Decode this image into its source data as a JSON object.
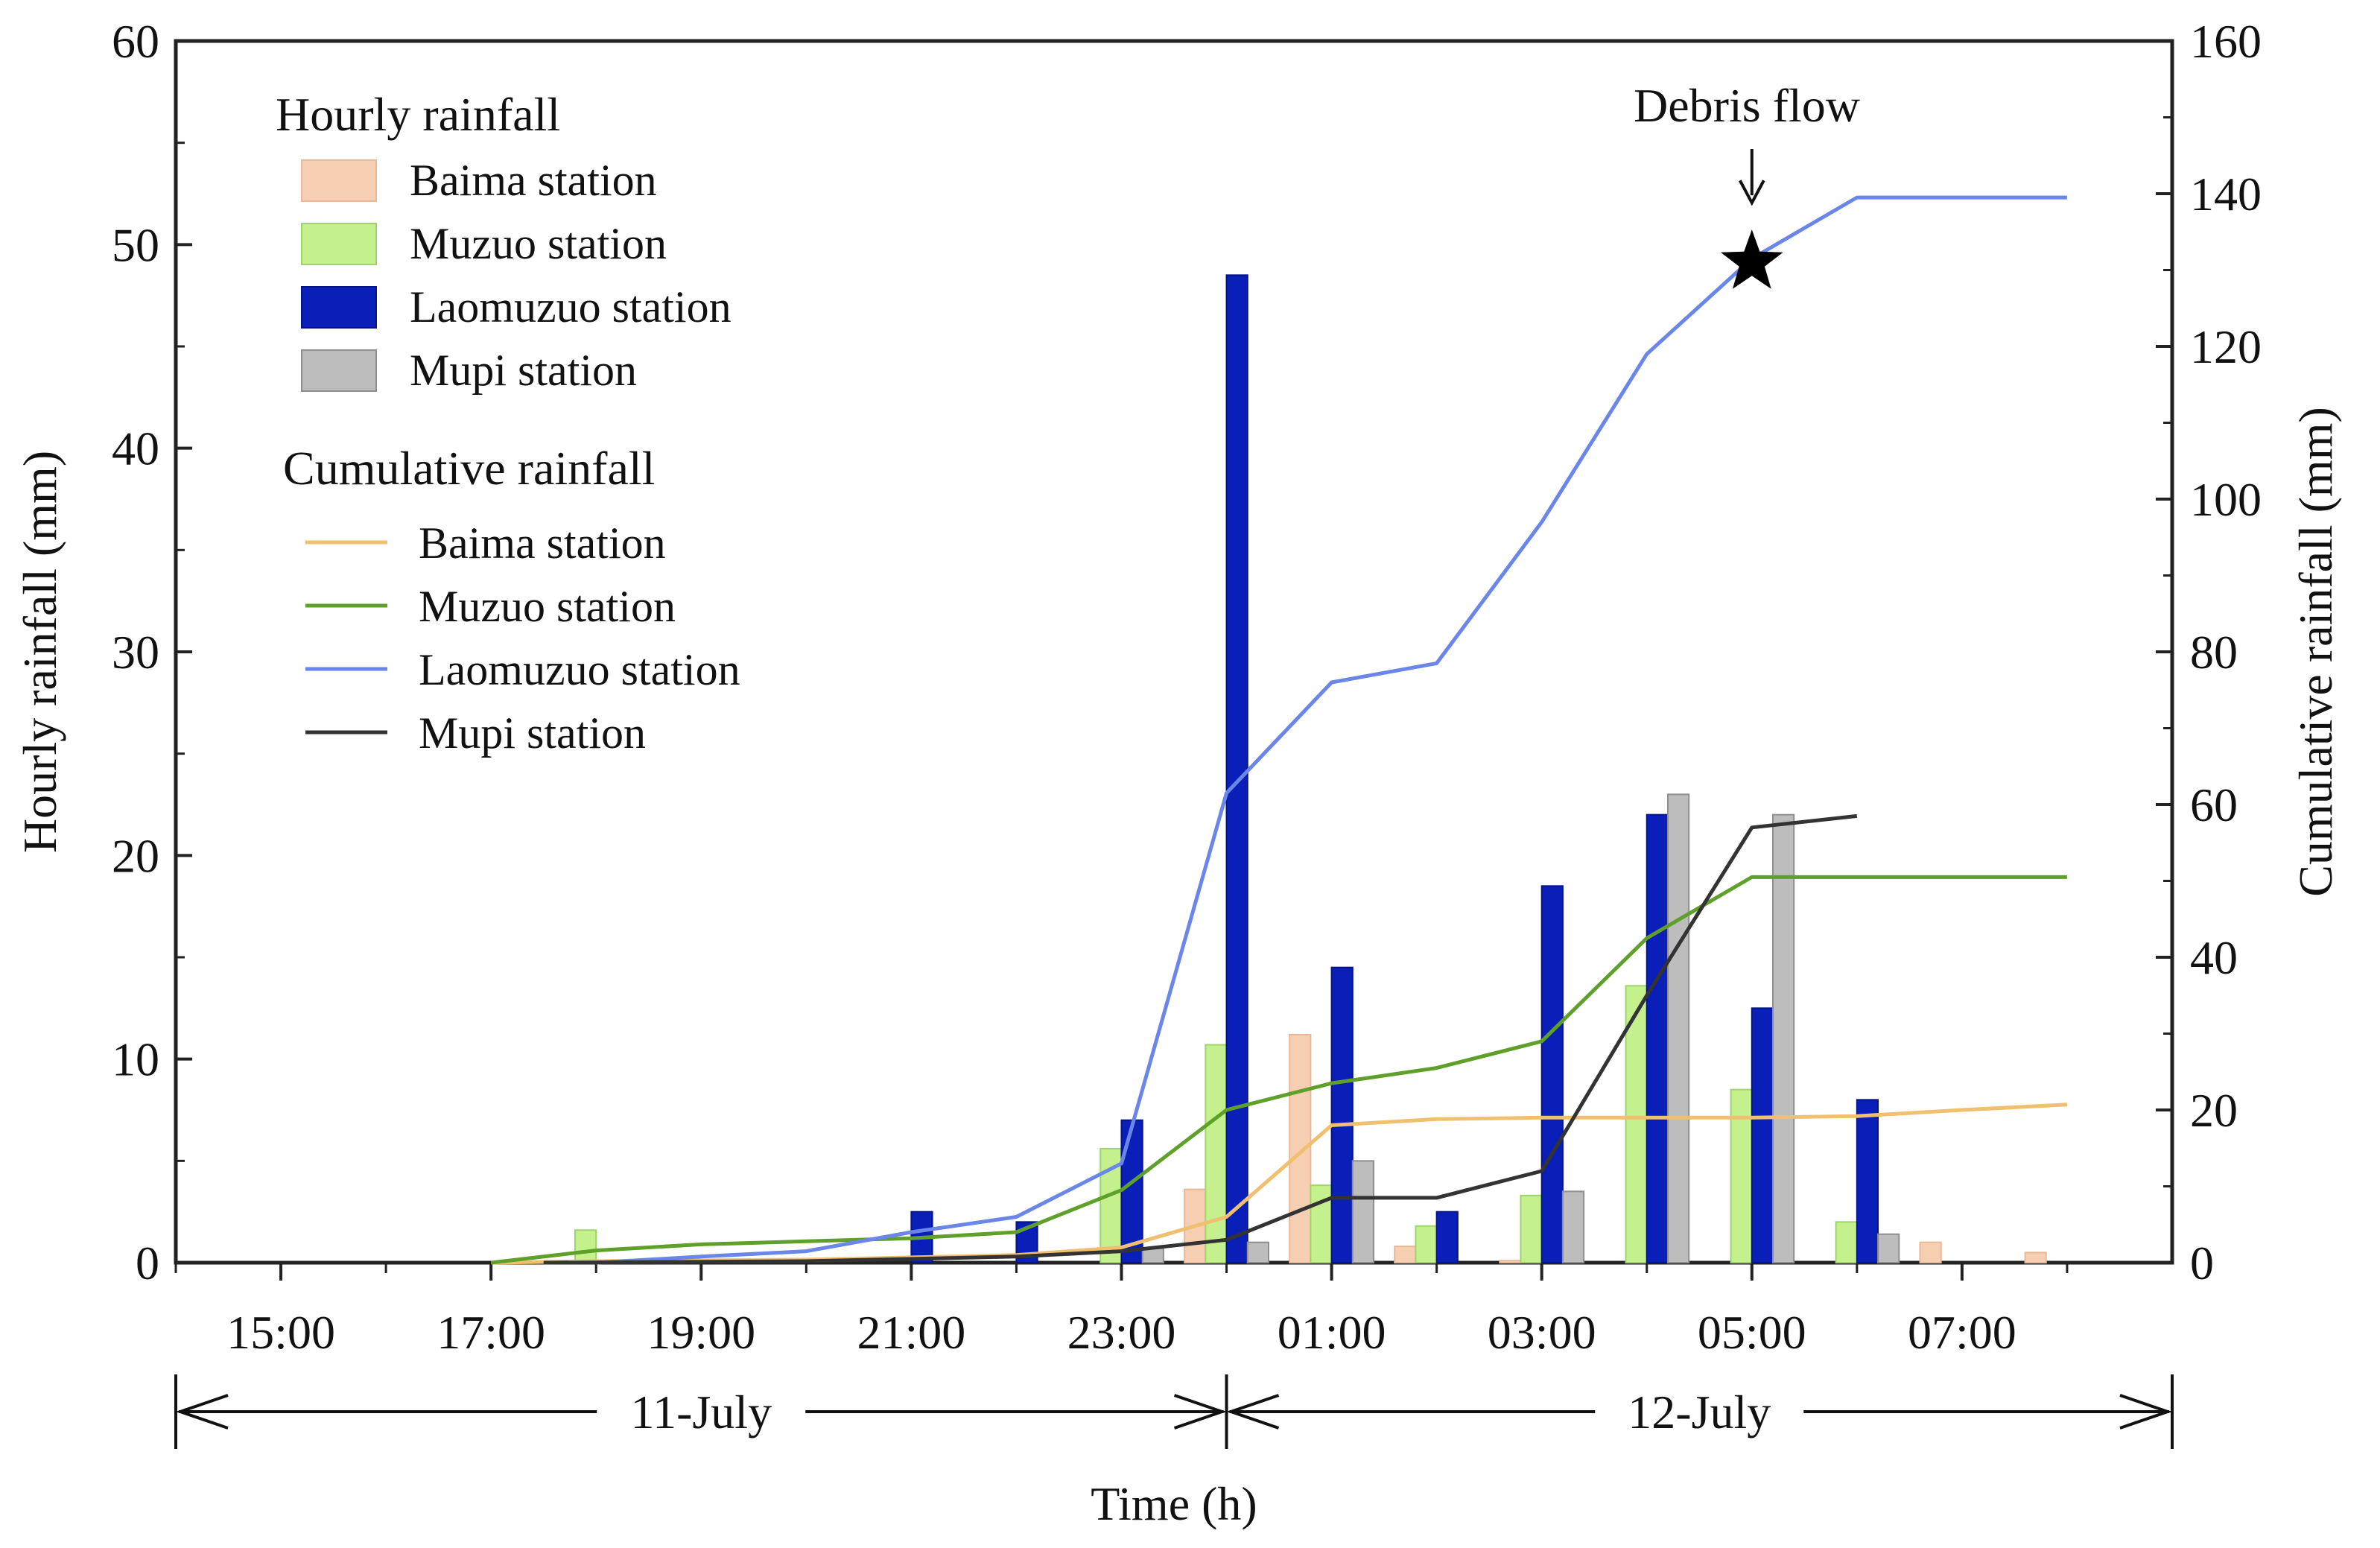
{
  "chart_data": {
    "type": "bar+line",
    "xlabel": "Time (h)",
    "ylabel_left": "Hourly rainfall (mm)",
    "ylabel_right": "Cumulative rainfall (mm)",
    "ylim_left": [
      0,
      60
    ],
    "ylim_right": [
      0,
      160
    ],
    "yticks_left": [
      0,
      10,
      20,
      30,
      40,
      50,
      60
    ],
    "yticks_right": [
      0,
      20,
      40,
      60,
      80,
      100,
      120,
      140,
      160
    ],
    "xlim_hours": [
      14,
      33
    ],
    "xticks": [
      {
        "t": 15,
        "label": "15:00"
      },
      {
        "t": 17,
        "label": "17:00"
      },
      {
        "t": 19,
        "label": "19:00"
      },
      {
        "t": 21,
        "label": "21:00"
      },
      {
        "t": 23,
        "label": "23:00"
      },
      {
        "t": 25,
        "label": "01:00"
      },
      {
        "t": 27,
        "label": "03:00"
      },
      {
        "t": 29,
        "label": "05:00"
      },
      {
        "t": 31,
        "label": "07:00"
      }
    ],
    "day_labels": [
      {
        "label": "11-July",
        "from": 14,
        "to": 24
      },
      {
        "label": "12-July",
        "from": 24,
        "to": 33
      }
    ],
    "legend_hourly_title": "Hourly rainfall",
    "legend_cumulative_title": "Cumulative rainfall",
    "annotation": {
      "label": "Debris flow",
      "t": 29,
      "cumulative_value": 131
    },
    "hourly_series": [
      {
        "name": "Baima station",
        "color": "#f6cfb2",
        "stroke": "#e8b898",
        "data": [
          [
            23.7,
            3.6
          ],
          [
            24.7,
            11.2
          ],
          [
            25.7,
            0.8
          ],
          [
            26.7,
            0.1
          ],
          [
            30.7,
            1.0
          ],
          [
            31.7,
            0.5
          ]
        ]
      },
      {
        "name": "Muzuo station",
        "color": "#c4f08e",
        "stroke": "#9fd46a",
        "data": [
          [
            17.9,
            1.6
          ],
          [
            22.9,
            5.6
          ],
          [
            23.9,
            10.7
          ],
          [
            24.9,
            3.8
          ],
          [
            25.9,
            1.8
          ],
          [
            26.9,
            3.3
          ],
          [
            27.9,
            13.6
          ],
          [
            28.9,
            8.5
          ],
          [
            29.9,
            2.0
          ]
        ]
      },
      {
        "name": "Laomuzuo station",
        "color": "#0a1fb8",
        "stroke": "#06148a",
        "data": [
          [
            21.1,
            2.5
          ],
          [
            22.1,
            2.0
          ],
          [
            23.1,
            7.0
          ],
          [
            24.1,
            48.5
          ],
          [
            25.1,
            14.5
          ],
          [
            26.1,
            2.5
          ],
          [
            27.1,
            18.5
          ],
          [
            28.1,
            22.0
          ],
          [
            29.1,
            12.5
          ],
          [
            30.1,
            8.0
          ]
        ]
      },
      {
        "name": "Mupi station",
        "color": "#bdbdbd",
        "stroke": "#8e8e8e",
        "data": [
          [
            23.3,
            0.7
          ],
          [
            24.3,
            1.0
          ],
          [
            25.3,
            5.0
          ],
          [
            27.3,
            3.5
          ],
          [
            28.3,
            23.0
          ],
          [
            29.3,
            22.0
          ],
          [
            30.3,
            1.4
          ]
        ]
      }
    ],
    "cumulative_series": [
      {
        "name": "Baima station",
        "color": "#f0c070",
        "data": [
          [
            17.0,
            0
          ],
          [
            18.0,
            0.2
          ],
          [
            20.0,
            0.4
          ],
          [
            22.0,
            1.0
          ],
          [
            23.0,
            2.0
          ],
          [
            24.0,
            6.0
          ],
          [
            25.0,
            18.0
          ],
          [
            26.0,
            18.8
          ],
          [
            27.0,
            19.0
          ],
          [
            29.0,
            19.0
          ],
          [
            30.0,
            19.2
          ],
          [
            31.0,
            20.0
          ],
          [
            32.0,
            20.7
          ]
        ]
      },
      {
        "name": "Muzuo station",
        "color": "#5fa02a",
        "data": [
          [
            17.0,
            0
          ],
          [
            18.0,
            1.6
          ],
          [
            19.0,
            2.4
          ],
          [
            20.0,
            2.8
          ],
          [
            21.0,
            3.2
          ],
          [
            22.0,
            4.0
          ],
          [
            23.0,
            9.5
          ],
          [
            24.0,
            20.0
          ],
          [
            25.0,
            23.5
          ],
          [
            26.0,
            25.5
          ],
          [
            27.0,
            29.0
          ],
          [
            28.0,
            42.5
          ],
          [
            29.0,
            50.5
          ],
          [
            30.0,
            50.5
          ],
          [
            32.0,
            50.5
          ]
        ]
      },
      {
        "name": "Laomuzuo station",
        "color": "#6a86e8",
        "data": [
          [
            18.0,
            0
          ],
          [
            19.0,
            0.8
          ],
          [
            20.0,
            1.5
          ],
          [
            21.0,
            4.0
          ],
          [
            22.0,
            6.0
          ],
          [
            23.0,
            13.0
          ],
          [
            24.0,
            61.5
          ],
          [
            25.0,
            76.0
          ],
          [
            26.0,
            78.5
          ],
          [
            27.0,
            97.0
          ],
          [
            28.0,
            119.0
          ],
          [
            29.0,
            131.5
          ],
          [
            30.0,
            139.5
          ],
          [
            32.0,
            139.5
          ]
        ]
      },
      {
        "name": "Mupi station",
        "color": "#333333",
        "data": [
          [
            17.5,
            0
          ],
          [
            20.0,
            0.2
          ],
          [
            22.0,
            0.8
          ],
          [
            23.0,
            1.5
          ],
          [
            24.0,
            3.0
          ],
          [
            25.0,
            8.5
          ],
          [
            26.0,
            8.5
          ],
          [
            27.0,
            12.0
          ],
          [
            28.0,
            35.0
          ],
          [
            29.0,
            57.0
          ],
          [
            30.0,
            58.5
          ]
        ]
      }
    ]
  }
}
